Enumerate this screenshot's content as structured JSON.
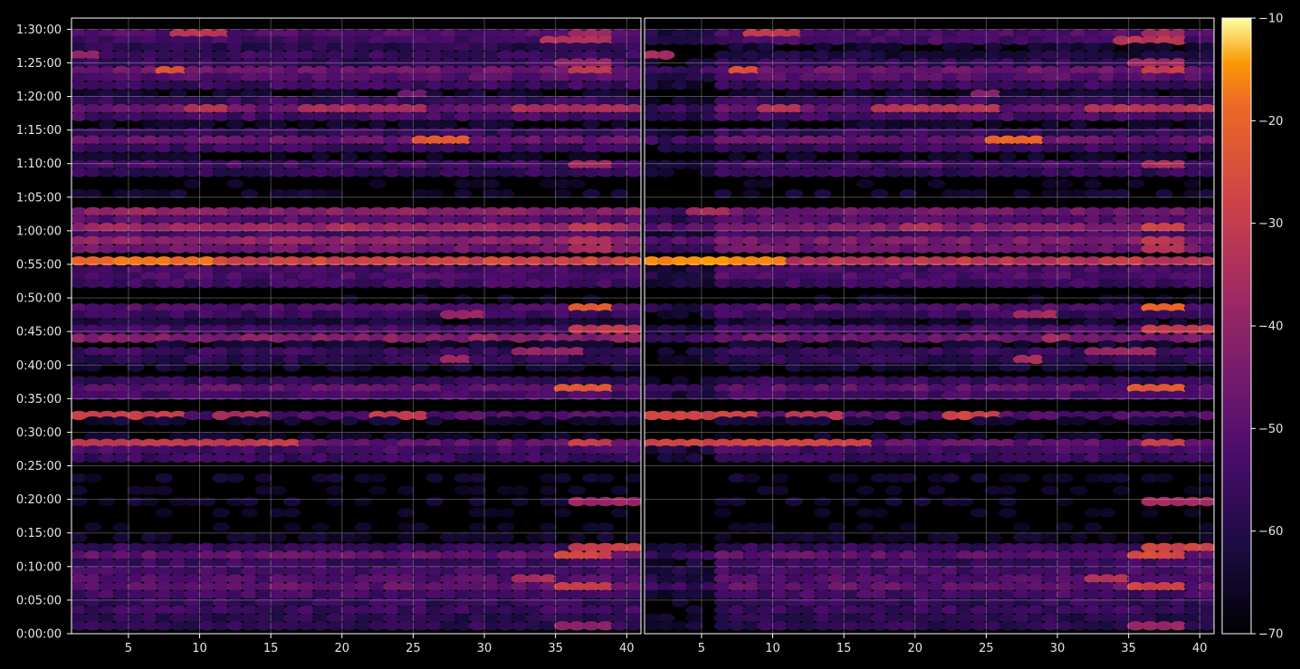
{
  "chart_data": {
    "type": "heatmap",
    "title": "",
    "xlabel": "",
    "ylabel": "",
    "colormap": "inferno",
    "grid": true,
    "colorbar": {
      "min": -70,
      "max": -10,
      "ticks": [
        -10,
        -20,
        -30,
        -40,
        -50,
        -60,
        -70
      ],
      "tick_labels": [
        "−10",
        "−20",
        "−30",
        "−40",
        "−50",
        "−60",
        "−70"
      ]
    },
    "panels": [
      {
        "name": "left",
        "xlim": [
          1,
          40
        ],
        "x_ticks": [
          5,
          10,
          15,
          20,
          25,
          30,
          35,
          40
        ],
        "x_tick_labels": [
          "5",
          "10",
          "15",
          "20",
          "25",
          "30",
          "35",
          "40"
        ]
      },
      {
        "name": "right",
        "xlim": [
          1,
          40
        ],
        "x_ticks": [
          5,
          10,
          15,
          20,
          25,
          30,
          35,
          40
        ],
        "x_tick_labels": [
          "5",
          "10",
          "15",
          "20",
          "25",
          "30",
          "35",
          "40"
        ]
      }
    ],
    "y_unit": "seconds",
    "ylim": [
      0,
      5500
    ],
    "y_ticks": [
      0,
      300,
      600,
      900,
      1200,
      1500,
      1800,
      2100,
      2400,
      2700,
      3000,
      3300,
      3600,
      3900,
      4200,
      4500,
      4800,
      5100,
      5400
    ],
    "y_tick_labels": [
      "0:00:00",
      "0:05:00",
      "0:10:00",
      "0:15:00",
      "0:20:00",
      "0:25:00",
      "0:30:00",
      "0:35:00",
      "0:40:00",
      "0:45:00",
      "0:50:00",
      "0:55:00",
      "1:00:00",
      "1:05:00",
      "1:10:00",
      "1:15:00",
      "1:20:00",
      "1:25:00",
      "1:30:00"
    ],
    "bands": [
      {
        "t": 5360,
        "level": -48,
        "left": "mid",
        "right": "mid",
        "hot": [
          [
            8,
            11,
            -33
          ],
          [
            36,
            38,
            -38
          ]
        ]
      },
      {
        "t": 5300,
        "level": -50,
        "left": "mid",
        "right": "mid",
        "hot": [
          [
            34,
            38,
            -34
          ]
        ]
      },
      {
        "t": 5240,
        "level": -55,
        "left": "mid",
        "right": "weak",
        "hot": []
      },
      {
        "t": 5170,
        "level": -52,
        "left": "mid",
        "right": "weak",
        "hot": [
          [
            1,
            2,
            -38
          ]
        ]
      },
      {
        "t": 5100,
        "level": -53,
        "left": "mid",
        "right": "mid",
        "hot": [
          [
            35,
            38,
            -40
          ]
        ]
      },
      {
        "t": 5030,
        "level": -43,
        "left": "mid",
        "right": "mid",
        "hot": [
          [
            7,
            8,
            -25
          ],
          [
            36,
            38,
            -32
          ]
        ]
      },
      {
        "t": 4970,
        "level": -47,
        "left": "mid",
        "right": "mid",
        "hot": []
      },
      {
        "t": 4900,
        "level": -52,
        "left": "mid",
        "right": "mid",
        "hot": []
      },
      {
        "t": 4820,
        "level": -55,
        "left": "weak",
        "right": "weak",
        "hot": [
          [
            24,
            25,
            -45
          ]
        ]
      },
      {
        "t": 4760,
        "level": -52,
        "left": "mid",
        "right": "mid",
        "hot": []
      },
      {
        "t": 4690,
        "level": -44,
        "left": "mid",
        "right": "mid",
        "hot": [
          [
            9,
            11,
            -34
          ],
          [
            17,
            25,
            -35
          ],
          [
            32,
            40,
            -35
          ]
        ]
      },
      {
        "t": 4620,
        "level": -50,
        "left": "mid",
        "right": "mid",
        "hot": []
      },
      {
        "t": 4550,
        "level": -56,
        "left": "weak",
        "right": "weak",
        "hot": []
      },
      {
        "t": 4480,
        "level": -53,
        "left": "mid",
        "right": "mid",
        "hot": []
      },
      {
        "t": 4410,
        "level": -44,
        "left": "mid",
        "right": "mid",
        "hot": [
          [
            25,
            28,
            -22
          ]
        ]
      },
      {
        "t": 4340,
        "level": -52,
        "left": "mid",
        "right": "mid",
        "hot": []
      },
      {
        "t": 4260,
        "level": -56,
        "left": "weak",
        "right": "weak",
        "hot": []
      },
      {
        "t": 4190,
        "level": -50,
        "left": "mid",
        "right": "mid",
        "hot": [
          [
            36,
            38,
            -38
          ]
        ]
      },
      {
        "t": 4120,
        "level": -53,
        "left": "mid",
        "right": "mid",
        "hot": []
      },
      {
        "t": 4020,
        "level": -58,
        "left": "weak",
        "right": "weak",
        "hot": []
      },
      {
        "t": 3930,
        "level": -55,
        "left": "weak",
        "right": "weak",
        "hot": []
      },
      {
        "t": 3770,
        "level": -42,
        "left": "strong",
        "right": "mid",
        "hot": [
          [
            4,
            6,
            -38
          ]
        ]
      },
      {
        "t": 3700,
        "level": -47,
        "left": "mid",
        "right": "mid",
        "hot": []
      },
      {
        "t": 3630,
        "level": -38,
        "left": "strong",
        "right": "mid",
        "hot": [
          [
            19,
            21,
            -35
          ],
          [
            36,
            38,
            -30
          ]
        ]
      },
      {
        "t": 3560,
        "level": -50,
        "left": "mid",
        "right": "mid",
        "hot": []
      },
      {
        "t": 3510,
        "level": -40,
        "left": "strong",
        "right": "mid",
        "hot": [
          [
            36,
            38,
            -34
          ]
        ]
      },
      {
        "t": 3440,
        "level": -43,
        "left": "mid",
        "right": "mid",
        "hot": [
          [
            36,
            38,
            -36
          ]
        ]
      },
      {
        "t": 3330,
        "level": -28,
        "left": "strong",
        "right": "mid",
        "hot": [
          [
            1,
            10,
            -18
          ]
        ]
      },
      {
        "t": 3250,
        "level": -50,
        "left": "mid",
        "right": "mid",
        "hot": []
      },
      {
        "t": 3190,
        "level": -48,
        "left": "mid",
        "right": "mid",
        "hot": []
      },
      {
        "t": 3130,
        "level": -51,
        "left": "mid",
        "right": "mid",
        "hot": []
      },
      {
        "t": 2990,
        "level": -58,
        "left": "weak",
        "right": "weak",
        "hot": []
      },
      {
        "t": 2910,
        "level": -48,
        "left": "mid",
        "right": "mid",
        "hot": [
          [
            36,
            38,
            -22
          ]
        ]
      },
      {
        "t": 2850,
        "level": -52,
        "left": "mid",
        "right": "mid",
        "hot": [
          [
            27,
            29,
            -38
          ]
        ]
      },
      {
        "t": 2780,
        "level": -53,
        "left": "weak",
        "right": "weak",
        "hot": []
      },
      {
        "t": 2720,
        "level": -50,
        "left": "mid",
        "right": "mid",
        "hot": [
          [
            36,
            40,
            -32
          ]
        ]
      },
      {
        "t": 2640,
        "level": -42,
        "left": "strong",
        "right": "mid",
        "hot": [
          [
            29,
            30,
            -38
          ]
        ]
      },
      {
        "t": 2580,
        "level": -55,
        "left": "weak",
        "right": "weak",
        "hot": []
      },
      {
        "t": 2520,
        "level": -52,
        "left": "mid",
        "right": "mid",
        "hot": [
          [
            32,
            36,
            -40
          ]
        ]
      },
      {
        "t": 2450,
        "level": -54,
        "left": "mid",
        "right": "mid",
        "hot": [
          [
            27,
            28,
            -38
          ]
        ]
      },
      {
        "t": 2380,
        "level": -55,
        "left": "weak",
        "right": "weak",
        "hot": []
      },
      {
        "t": 2260,
        "level": -53,
        "left": "mid",
        "right": "mid",
        "hot": []
      },
      {
        "t": 2190,
        "level": -45,
        "left": "mid",
        "right": "mid",
        "hot": [
          [
            35,
            38,
            -24
          ]
        ]
      },
      {
        "t": 2130,
        "level": -50,
        "left": "mid",
        "right": "mid",
        "hot": []
      },
      {
        "t": 1950,
        "level": -48,
        "left": "mid",
        "right": "mid",
        "hot": [
          [
            1,
            8,
            -30
          ],
          [
            11,
            14,
            -35
          ],
          [
            22,
            25,
            -30
          ]
        ]
      },
      {
        "t": 1900,
        "level": -55,
        "left": "weak",
        "right": "weak",
        "hot": []
      },
      {
        "t": 1760,
        "level": -56,
        "left": "weak",
        "right": "weak",
        "hot": []
      },
      {
        "t": 1700,
        "level": -45,
        "left": "mid",
        "right": "mid",
        "hot": [
          [
            1,
            16,
            -30
          ],
          [
            36,
            38,
            -30
          ]
        ]
      },
      {
        "t": 1640,
        "level": -50,
        "left": "mid",
        "right": "mid",
        "hot": []
      },
      {
        "t": 1570,
        "level": -52,
        "left": "mid",
        "right": "mid",
        "hot": []
      },
      {
        "t": 1390,
        "level": -56,
        "left": "weak",
        "right": "weak",
        "hot": []
      },
      {
        "t": 1280,
        "level": -58,
        "left": "weak",
        "right": "weak",
        "hot": []
      },
      {
        "t": 1180,
        "level": -56,
        "left": "weak",
        "right": "weak",
        "hot": [
          [
            36,
            40,
            -38
          ]
        ]
      },
      {
        "t": 1080,
        "level": -58,
        "left": "weak",
        "right": "weak",
        "hot": []
      },
      {
        "t": 950,
        "level": -58,
        "left": "weak",
        "right": "weak",
        "hot": []
      },
      {
        "t": 860,
        "level": -56,
        "left": "weak",
        "right": "weak",
        "hot": []
      },
      {
        "t": 770,
        "level": -53,
        "left": "mid",
        "right": "mid",
        "hot": [
          [
            36,
            40,
            -30
          ]
        ]
      },
      {
        "t": 700,
        "level": -45,
        "left": "mid",
        "right": "mid",
        "hot": [
          [
            35,
            38,
            -28
          ]
        ]
      },
      {
        "t": 630,
        "level": -52,
        "left": "mid",
        "right": "mid",
        "hot": []
      },
      {
        "t": 560,
        "level": -50,
        "left": "mid",
        "right": "mid",
        "hot": []
      },
      {
        "t": 490,
        "level": -48,
        "left": "mid",
        "right": "mid",
        "hot": [
          [
            32,
            34,
            -35
          ]
        ]
      },
      {
        "t": 420,
        "level": -45,
        "left": "mid",
        "right": "mid",
        "hot": [
          [
            35,
            38,
            -30
          ]
        ]
      },
      {
        "t": 350,
        "level": -50,
        "left": "mid",
        "right": "mid",
        "hot": []
      },
      {
        "t": 280,
        "level": -53,
        "left": "mid",
        "right": "mid",
        "hot": []
      },
      {
        "t": 210,
        "level": -52,
        "left": "mid",
        "right": "mid",
        "hot": []
      },
      {
        "t": 140,
        "level": -55,
        "left": "mid",
        "right": "mid",
        "hot": []
      },
      {
        "t": 70,
        "level": -54,
        "left": "mid",
        "right": "mid",
        "hot": [
          [
            35,
            38,
            -40
          ]
        ]
      }
    ]
  }
}
